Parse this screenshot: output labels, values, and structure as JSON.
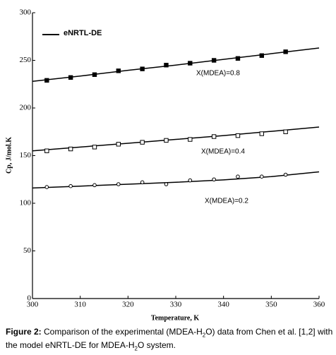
{
  "chart_data": {
    "type": "line",
    "xlabel": "Temperature, K",
    "ylabel": "Cp, J/mol.K",
    "xlim": [
      300,
      360
    ],
    "xticks": [
      300,
      310,
      320,
      330,
      340,
      350,
      360
    ],
    "ylim": [
      0,
      300
    ],
    "yticks": [
      0,
      50,
      100,
      150,
      200,
      250,
      300
    ],
    "model": {
      "name": "eNRTL-DE",
      "color": "#000000",
      "curves": [
        {
          "label": "X(MDEA)=0.8",
          "x": [
            300,
            310,
            320,
            330,
            340,
            350,
            360
          ],
          "values": [
            228,
            233.5,
            239.5,
            245,
            251,
            257,
            263
          ]
        },
        {
          "label": "X(MDEA)=0.4",
          "x": [
            300,
            310,
            320,
            330,
            340,
            350,
            360
          ],
          "values": [
            155,
            159,
            163,
            167,
            171,
            175.5,
            180
          ]
        },
        {
          "label": "X(MDEA)=0.2",
          "x": [
            300,
            310,
            320,
            330,
            340,
            350,
            360
          ],
          "values": [
            116,
            118,
            120,
            122,
            124.5,
            128,
            133
          ]
        }
      ]
    },
    "experimental": [
      {
        "marker": "filled-square",
        "color": "#000000",
        "x": [
          303,
          308,
          313,
          318,
          323,
          328,
          333,
          338,
          343,
          348,
          353
        ],
        "values": [
          229,
          232,
          235,
          239,
          241,
          245,
          247,
          250,
          252,
          255,
          259
        ]
      },
      {
        "marker": "open-square",
        "color": "#000000",
        "x": [
          303,
          308,
          313,
          318,
          323,
          328,
          333,
          338,
          343,
          348,
          353
        ],
        "values": [
          155,
          157,
          159,
          162,
          164,
          166,
          167,
          170,
          171,
          173,
          175
        ]
      },
      {
        "marker": "open-circle",
        "color": "#000000",
        "x": [
          303,
          308,
          313,
          318,
          323,
          328,
          333,
          338,
          343,
          348,
          353
        ],
        "values": [
          117,
          118,
          119,
          120,
          122,
          120,
          124,
          125,
          128,
          128,
          130
        ]
      }
    ]
  },
  "caption": {
    "label": "Figure 2:",
    "parts": [
      " Comparison of the experimental (MDEA-H",
      "2",
      "O) data from Chen et al. [1,2] with the model eNRTL-DE for MDEA-H",
      "2",
      "O system."
    ]
  }
}
